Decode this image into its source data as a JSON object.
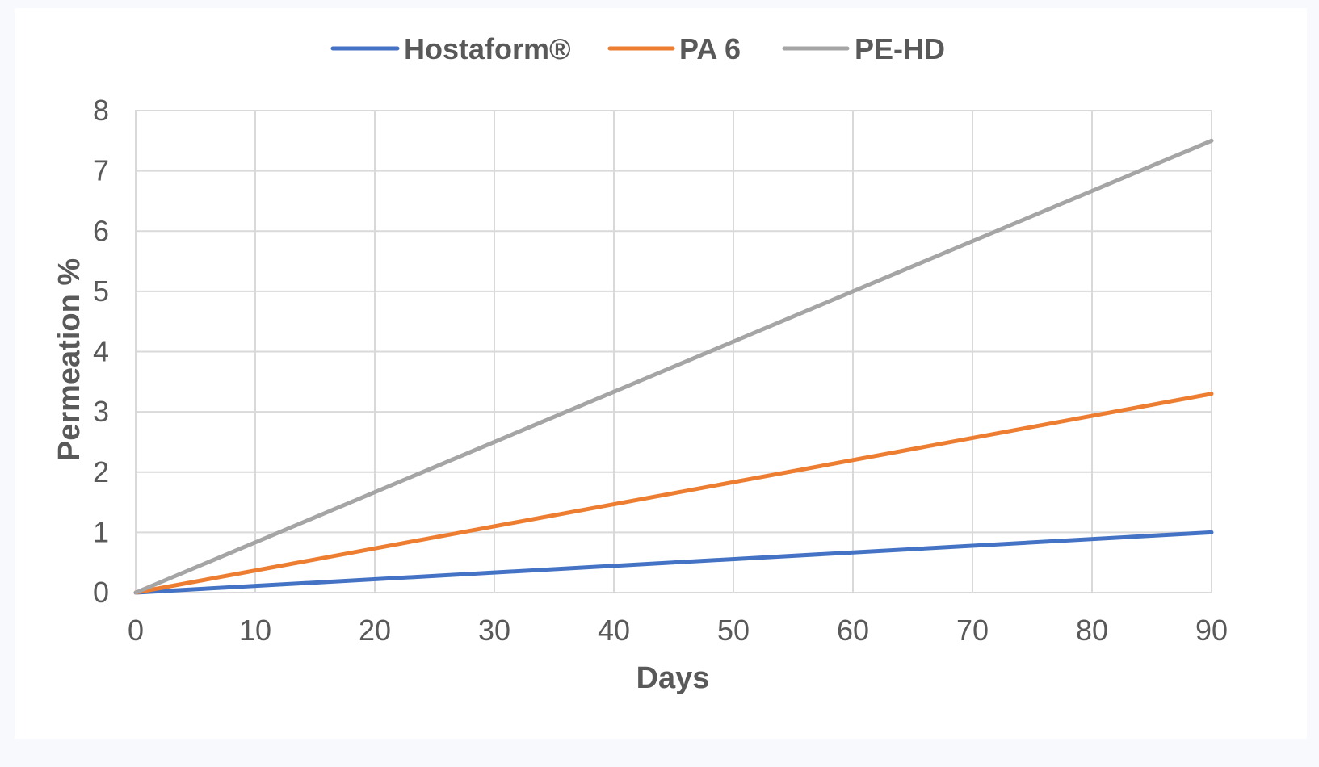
{
  "chart_data": {
    "type": "line",
    "title": "",
    "xlabel": "Days",
    "ylabel": "Permeation %",
    "xlim": [
      0,
      90
    ],
    "ylim": [
      0,
      8
    ],
    "x_ticks": [
      0,
      10,
      20,
      30,
      40,
      50,
      60,
      70,
      80,
      90
    ],
    "y_ticks": [
      0,
      1,
      2,
      3,
      4,
      5,
      6,
      7,
      8
    ],
    "grid": true,
    "legend_position": "top-center",
    "x": [
      0,
      90
    ],
    "series": [
      {
        "name": "Hostaform®",
        "color": "#4472c4",
        "values": [
          0,
          1.0
        ]
      },
      {
        "name": "PA 6",
        "color": "#ed7d31",
        "values": [
          0,
          3.3
        ]
      },
      {
        "name": "PE-HD",
        "color": "#a5a5a5",
        "values": [
          0,
          7.5
        ]
      }
    ]
  }
}
